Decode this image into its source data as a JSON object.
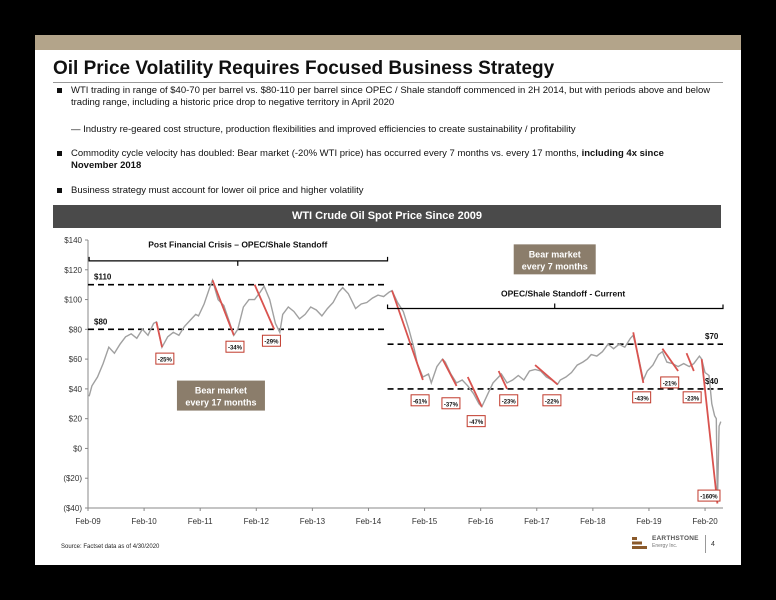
{
  "title": "Oil Price Volatility Requires Focused Business Strategy",
  "bullets": [
    "WTI trading in range of $40-70 per barrel vs. $80-110 per barrel since OPEC / Shale standoff commenced in 2H 2014, but with periods above and below trading range, including a historic price drop to negative territory in April 2020",
    "— Industry re-geared cost structure, production flexibilities and improved efficiencies to create sustainability / profitability",
    "Commodity cycle velocity has doubled: Bear market (-20% WTI price) has occurred every 7 months vs. every 17 months,",
    "including 4x since November 2018",
    "Business strategy must account for lower oil price and higher volatility"
  ],
  "chart_header": "WTI Crude Oil Spot Price Since 2009",
  "chart_data": {
    "type": "line",
    "title": "WTI Crude Oil Spot Price Since 2009",
    "x_ticks": [
      "Feb-09",
      "Feb-10",
      "Feb-11",
      "Feb-12",
      "Feb-13",
      "Feb-14",
      "Feb-15",
      "Feb-16",
      "Feb-17",
      "Feb-18",
      "Feb-19",
      "Feb-20"
    ],
    "y_ticks": [
      "$140",
      "$120",
      "$100",
      "$80",
      "$60",
      "$40",
      "$20",
      "$0",
      "($20)",
      "($40)"
    ],
    "ylim": [
      -40,
      140
    ],
    "xlim": [
      2009.08,
      2020.4
    ],
    "grid": false,
    "series": [
      {
        "values": [
          [
            2009.1,
            35
          ],
          [
            2009.15,
            42
          ],
          [
            2009.25,
            48
          ],
          [
            2009.35,
            57
          ],
          [
            2009.45,
            68
          ],
          [
            2009.55,
            64
          ],
          [
            2009.65,
            70
          ],
          [
            2009.75,
            75
          ],
          [
            2009.85,
            77
          ],
          [
            2009.95,
            74
          ],
          [
            2010.05,
            80
          ],
          [
            2010.15,
            76
          ],
          [
            2010.25,
            84
          ],
          [
            2010.3,
            85
          ],
          [
            2010.4,
            68
          ],
          [
            2010.5,
            75
          ],
          [
            2010.6,
            78
          ],
          [
            2010.7,
            76
          ],
          [
            2010.8,
            82
          ],
          [
            2010.9,
            86
          ],
          [
            2011.0,
            90
          ],
          [
            2011.05,
            89
          ],
          [
            2011.15,
            97
          ],
          [
            2011.25,
            108
          ],
          [
            2011.3,
            113
          ],
          [
            2011.4,
            100
          ],
          [
            2011.5,
            96
          ],
          [
            2011.6,
            85
          ],
          [
            2011.68,
            76
          ],
          [
            2011.75,
            80
          ],
          [
            2011.85,
            95
          ],
          [
            2011.95,
            100
          ],
          [
            2012.05,
            100
          ],
          [
            2012.15,
            105
          ],
          [
            2012.22,
            109
          ],
          [
            2012.32,
            100
          ],
          [
            2012.42,
            84
          ],
          [
            2012.5,
            78
          ],
          [
            2012.55,
            90
          ],
          [
            2012.65,
            95
          ],
          [
            2012.75,
            92
          ],
          [
            2012.85,
            87
          ],
          [
            2012.95,
            90
          ],
          [
            2013.05,
            95
          ],
          [
            2013.15,
            93
          ],
          [
            2013.25,
            89
          ],
          [
            2013.35,
            94
          ],
          [
            2013.45,
            98
          ],
          [
            2013.55,
            105
          ],
          [
            2013.62,
            108
          ],
          [
            2013.72,
            104
          ],
          [
            2013.85,
            94
          ],
          [
            2013.95,
            97
          ],
          [
            2014.05,
            98
          ],
          [
            2014.15,
            101
          ],
          [
            2014.25,
            103
          ],
          [
            2014.35,
            102
          ],
          [
            2014.45,
            105
          ],
          [
            2014.5,
            106
          ],
          [
            2014.6,
            98
          ],
          [
            2014.7,
            92
          ],
          [
            2014.8,
            80
          ],
          [
            2014.9,
            66
          ],
          [
            2014.95,
            57
          ],
          [
            2015.05,
            48
          ],
          [
            2015.15,
            50
          ],
          [
            2015.2,
            44
          ],
          [
            2015.3,
            55
          ],
          [
            2015.4,
            60
          ],
          [
            2015.45,
            58
          ],
          [
            2015.55,
            50
          ],
          [
            2015.65,
            44
          ],
          [
            2015.75,
            46
          ],
          [
            2015.85,
            42
          ],
          [
            2015.95,
            37
          ],
          [
            2016.05,
            30
          ],
          [
            2016.1,
            28
          ],
          [
            2016.2,
            36
          ],
          [
            2016.3,
            44
          ],
          [
            2016.4,
            48
          ],
          [
            2016.45,
            50
          ],
          [
            2016.55,
            44
          ],
          [
            2016.65,
            46
          ],
          [
            2016.75,
            49
          ],
          [
            2016.85,
            46
          ],
          [
            2016.95,
            52
          ],
          [
            2017.05,
            53
          ],
          [
            2017.15,
            52
          ],
          [
            2017.25,
            48
          ],
          [
            2017.35,
            46
          ],
          [
            2017.45,
            43
          ],
          [
            2017.5,
            46
          ],
          [
            2017.6,
            48
          ],
          [
            2017.7,
            51
          ],
          [
            2017.8,
            56
          ],
          [
            2017.9,
            58
          ],
          [
            2017.98,
            60
          ],
          [
            2018.05,
            63
          ],
          [
            2018.15,
            62
          ],
          [
            2018.25,
            65
          ],
          [
            2018.35,
            70
          ],
          [
            2018.45,
            67
          ],
          [
            2018.55,
            70
          ],
          [
            2018.65,
            68
          ],
          [
            2018.75,
            74
          ],
          [
            2018.8,
            76
          ],
          [
            2018.9,
            60
          ],
          [
            2018.98,
            46
          ],
          [
            2019.05,
            52
          ],
          [
            2019.15,
            56
          ],
          [
            2019.25,
            63
          ],
          [
            2019.32,
            65
          ],
          [
            2019.4,
            58
          ],
          [
            2019.5,
            57
          ],
          [
            2019.6,
            55
          ],
          [
            2019.7,
            57
          ],
          [
            2019.8,
            55
          ],
          [
            2019.88,
            57
          ],
          [
            2019.98,
            62
          ],
          [
            2020.02,
            60
          ],
          [
            2020.08,
            51
          ],
          [
            2020.15,
            49
          ],
          [
            2020.2,
            30
          ],
          [
            2020.25,
            22
          ],
          [
            2020.28,
            20
          ],
          [
            2020.3,
            -37
          ],
          [
            2020.33,
            15
          ],
          [
            2020.36,
            18
          ]
        ]
      }
    ],
    "declines": [
      {
        "label": "-25%",
        "x1": 2010.3,
        "y1": 85,
        "x2": 2010.4,
        "y2": 68
      },
      {
        "label": "-34%",
        "x1": 2011.3,
        "y1": 113,
        "x2": 2011.68,
        "y2": 76
      },
      {
        "label": "-29%",
        "x1": 2012.05,
        "y1": 110,
        "x2": 2012.4,
        "y2": 80
      },
      {
        "label": "-61%",
        "x1": 2014.5,
        "y1": 106,
        "x2": 2015.05,
        "y2": 46
      },
      {
        "label": "-37%",
        "x1": 2015.4,
        "y1": 60,
        "x2": 2015.65,
        "y2": 42
      },
      {
        "label": "-47%",
        "x1": 2015.85,
        "y1": 48,
        "x2": 2016.1,
        "y2": 28
      },
      {
        "label": "-23%",
        "x1": 2016.4,
        "y1": 52,
        "x2": 2016.55,
        "y2": 40
      },
      {
        "label": "-22%",
        "x1": 2017.05,
        "y1": 56,
        "x2": 2017.45,
        "y2": 43
      },
      {
        "label": "-43%",
        "x1": 2018.8,
        "y1": 78,
        "x2": 2018.98,
        "y2": 44
      },
      {
        "label": "-21%",
        "x1": 2019.32,
        "y1": 67,
        "x2": 2019.6,
        "y2": 52
      },
      {
        "label": "-23%",
        "x1": 2019.75,
        "y1": 64,
        "x2": 2019.88,
        "y2": 52
      },
      {
        "label": "-160%",
        "x1": 2020.02,
        "y1": 60,
        "x2": 2020.3,
        "y2": -37
      }
    ],
    "reference_lines": [
      {
        "label": "$110",
        "y": 110,
        "x1": 2009.08,
        "x2": 2014.42
      },
      {
        "label": "$80",
        "y": 80,
        "x1": 2009.08,
        "x2": 2014.42
      },
      {
        "label": "$70",
        "y": 70,
        "x1": 2014.42,
        "x2": 2020.4
      },
      {
        "label": "$40",
        "y": 40,
        "x1": 2014.42,
        "x2": 2020.4
      }
    ],
    "annotations": {
      "period1_label": "Post Financial Crisis – OPEC/Shale Standoff",
      "period2_label": "OPEC/Shale Standoff - Current",
      "bear17_line1": "Bear market",
      "bear17_line2": "every 17 months",
      "bear7_line1": "Bear market",
      "bear7_line2": "every 7 months"
    },
    "colors": {
      "line": "#a0a0a0",
      "decline": "#d9534f",
      "box": "#8b7d6b",
      "label_box": "#c0392b"
    }
  },
  "footer": {
    "source": "Source: Factset data as of 4/30/2020",
    "company": "EARTHSTONE",
    "company_sub": "Energy Inc.",
    "page": "4"
  }
}
